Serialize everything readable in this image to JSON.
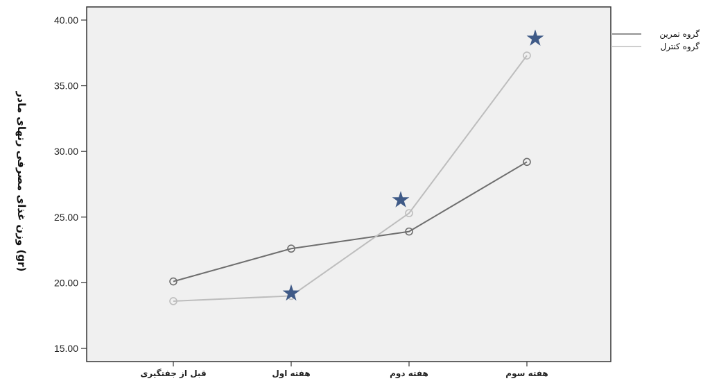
{
  "chart_data": {
    "type": "line",
    "ylabel": "وزن غذای مصرفی رتهای مادر (gr)",
    "xlabel": "",
    "categories": [
      "قبل از جفتگیری",
      "هفته اول",
      "هفته دوم",
      "هفته سوم"
    ],
    "ylim": [
      14,
      41
    ],
    "yticks": [
      15,
      20,
      25,
      30,
      35,
      40
    ],
    "ytick_labels": [
      "15.00",
      "20.00",
      "25.00",
      "30.00",
      "35.00",
      "40.00"
    ],
    "grid": false,
    "legend_position": "right-top",
    "series": [
      {
        "name": "گروه تمرین",
        "values": [
          20.1,
          22.6,
          23.9,
          29.2
        ],
        "color": "#6e6e6e"
      },
      {
        "name": "گروه کنترل",
        "values": [
          18.6,
          19.0,
          25.3,
          37.3
        ],
        "color": "#bdbdbd"
      }
    ],
    "significance_markers": {
      "symbol": "star",
      "color": "#3f5a87",
      "points": [
        {
          "category": "هفته اول",
          "value": 19.2
        },
        {
          "category": "هفته دوم",
          "value": 26.3
        },
        {
          "category": "هفته سوم",
          "value": 38.6
        }
      ]
    },
    "plot_background": "#f0f0f0"
  }
}
